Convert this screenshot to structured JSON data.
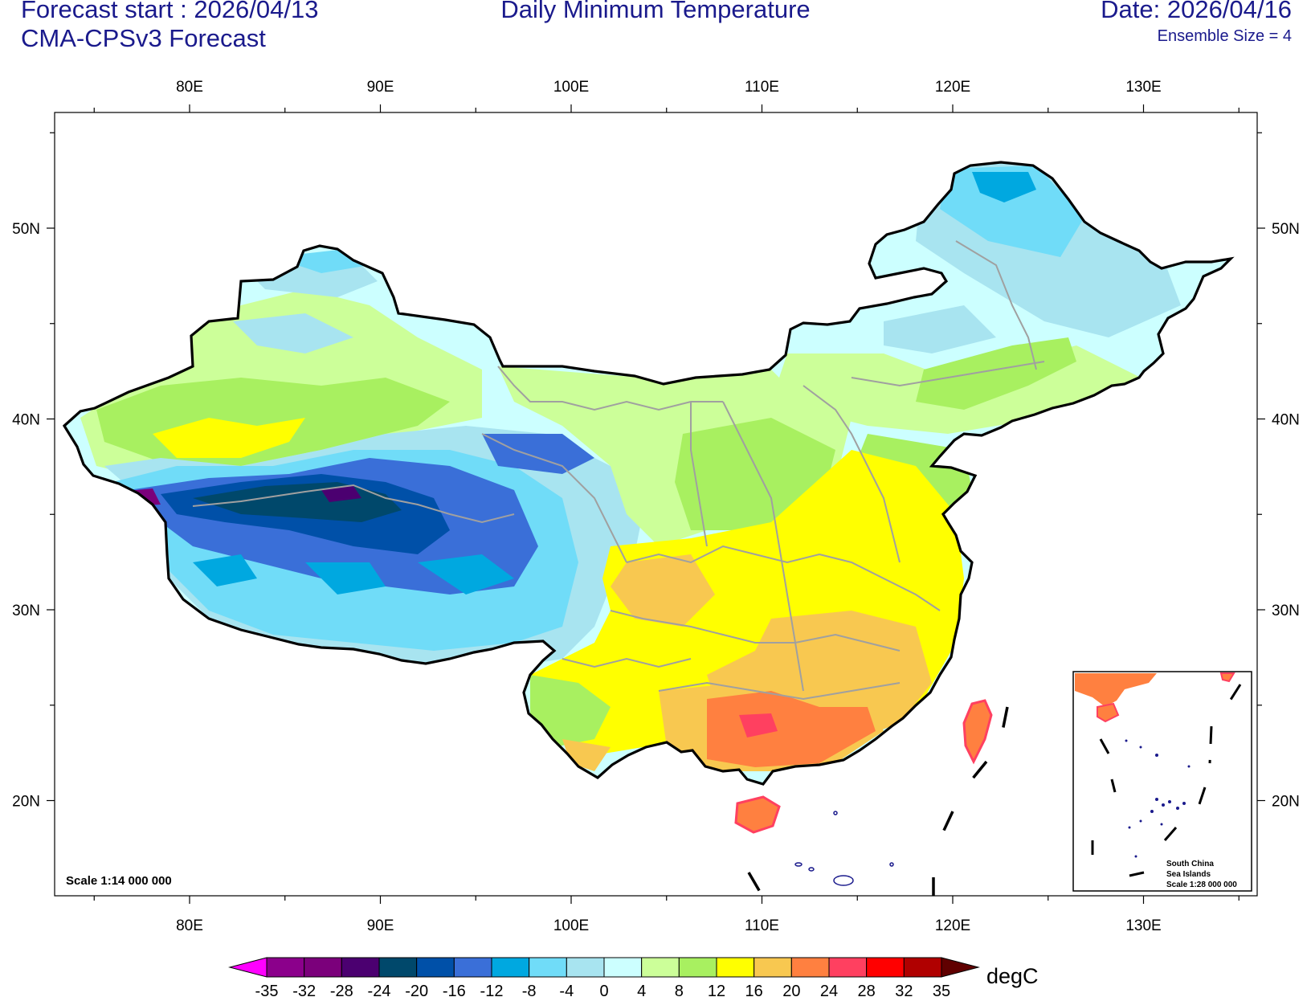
{
  "header": {
    "forecast_start": "Forecast start : 2026/04/13",
    "model": "CMA-CPSv3 Forecast",
    "title": "Daily Minimum Temperature",
    "date": "Date: 2026/04/16",
    "ensemble": "Ensemble Size = 4"
  },
  "map": {
    "region": "China",
    "lon_range": [
      73,
      136
    ],
    "lat_range": [
      15,
      56
    ],
    "lon_ticks": [
      "80E",
      "90E",
      "100E",
      "110E",
      "120E",
      "130E"
    ],
    "lat_ticks": [
      "50N",
      "40N",
      "30N",
      "20N"
    ],
    "scale_label": "Scale 1:14 000 000",
    "inset": {
      "line1": "South China",
      "line2": "Sea Islands",
      "line3": "Scale 1:28 000 000"
    }
  },
  "colorbar": {
    "unit": "degC",
    "labels": [
      "-35",
      "-32",
      "-28",
      "-24",
      "-20",
      "-16",
      "-12",
      "-8",
      "-4",
      "0",
      "4",
      "8",
      "12",
      "16",
      "20",
      "24",
      "28",
      "32",
      "35"
    ],
    "colors": [
      "#ff00ff",
      "#8b008b",
      "#7b007b",
      "#4b0070",
      "#00486b",
      "#0050a8",
      "#3a6fd8",
      "#00a8e0",
      "#70dcf8",
      "#a8e4f0",
      "#ccffff",
      "#ccff99",
      "#a8f060",
      "#ffff00",
      "#f8c850",
      "#ff8040",
      "#ff4060",
      "#ff0000",
      "#b00000",
      "#600000"
    ]
  }
}
